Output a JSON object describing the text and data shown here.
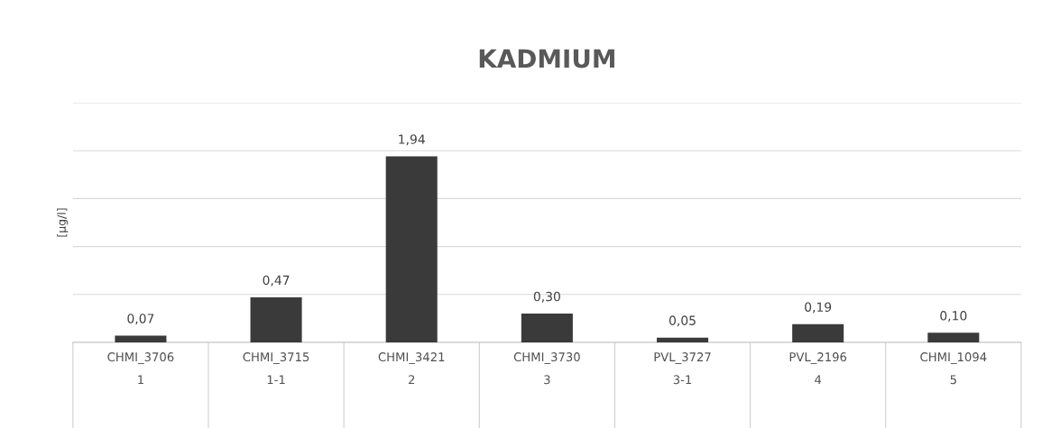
{
  "chart_data": {
    "type": "bar",
    "title": "KADMIUM",
    "ylabel": "[µg/l]",
    "categories": [
      "CHMI_3706\n1",
      "CHMI_3715\n1-1",
      "CHMI_3421\n2",
      "CHMI_3730\n3",
      "PVL_3727\n3-1",
      "PVL_2196\n4",
      "CHMI_1094\n5"
    ],
    "values": [
      0.07,
      0.47,
      1.94,
      0.3,
      0.05,
      0.19,
      0.1
    ],
    "value_labels": [
      "0,07",
      "0,47",
      "1,94",
      "0,30",
      "0,05",
      "0,19",
      "0,10"
    ],
    "color": "#3a3a3a",
    "ylim": [
      0,
      2.5
    ],
    "yticks": [
      {
        "value": 0,
        "label": null
      },
      {
        "value": 0.5,
        "label": null
      },
      {
        "value": 1,
        "label": null
      },
      {
        "value": 1.5,
        "label": null
      },
      {
        "value": 2,
        "label": null
      },
      {
        "value": 2.5,
        "label": null
      }
    ],
    "grid": "y",
    "tick_labels": "x"
  }
}
